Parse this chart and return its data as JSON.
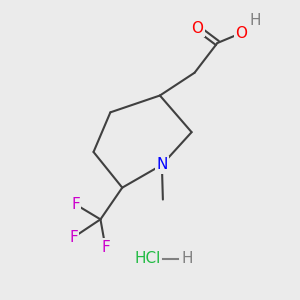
{
  "background_color": "#ebebeb",
  "bond_color": "#404040",
  "bond_width": 1.5,
  "atom_colors": {
    "O": "#ff0000",
    "N": "#0000ff",
    "F": "#cc00cc",
    "Cl": "#22bb44",
    "H": "#808080",
    "C": "#404040"
  },
  "font_size": 11,
  "hcl_color": "#22bb44",
  "hcl_h_color": "#808080"
}
